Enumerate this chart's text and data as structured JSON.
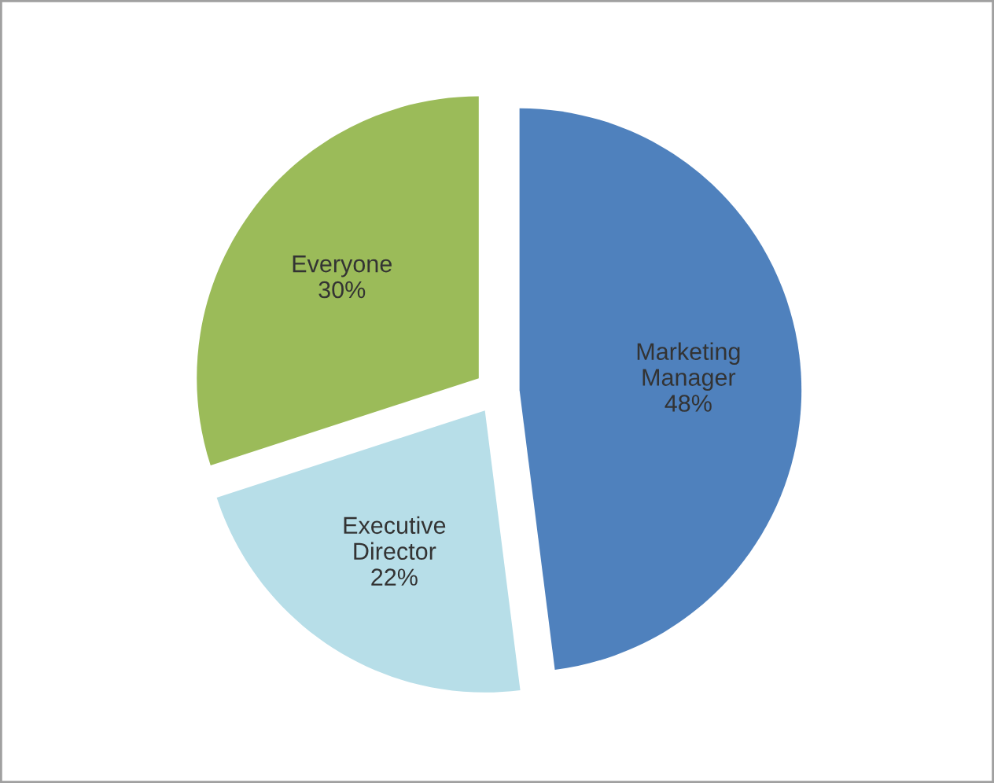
{
  "chart_data": {
    "type": "pie",
    "categories": [
      "Marketing Manager",
      "Everyone",
      "Executive Director"
    ],
    "values": [
      48,
      30,
      22
    ],
    "value_labels": [
      "48%",
      "30%",
      "22%"
    ],
    "colors": [
      "#4f81bd",
      "#9bbb59",
      "#b7dee8"
    ]
  }
}
